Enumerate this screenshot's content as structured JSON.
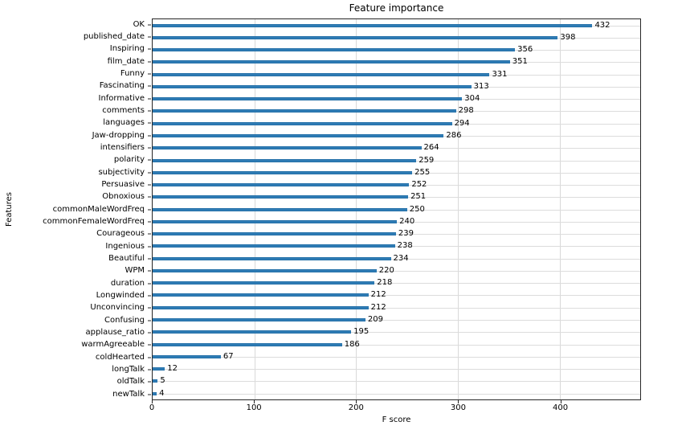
{
  "chart_data": {
    "type": "bar",
    "orientation": "horizontal",
    "title": "Feature importance",
    "xlabel": "F score",
    "ylabel": "Features",
    "xlim": [
      0,
      479
    ],
    "x_ticks": [
      0,
      100,
      200,
      300,
      400
    ],
    "grid": true,
    "legend": null,
    "bar_color": "#2f7cb5",
    "grid_color": "#dcdcdc",
    "axis_color": "#262626",
    "categories": [
      "OK",
      "published_date",
      "Inspiring",
      "film_date",
      "Funny",
      "Fascinating",
      "Informative",
      "comments",
      "languages",
      "Jaw-dropping",
      "intensifiers",
      "polarity",
      "subjectivity",
      "Persuasive",
      "Obnoxious",
      "commonMaleWordFreq",
      "commonFemaleWordFreq",
      "Courageous",
      "Ingenious",
      "Beautiful",
      "WPM",
      "duration",
      "Longwinded",
      "Unconvincing",
      "Confusing",
      "applause_ratio",
      "warmAgreeable",
      "coldHearted",
      "longTalk",
      "oldTalk",
      "newTalk"
    ],
    "values": [
      432,
      398,
      356,
      351,
      331,
      313,
      304,
      298,
      294,
      286,
      264,
      259,
      255,
      252,
      251,
      250,
      240,
      239,
      238,
      234,
      220,
      218,
      212,
      212,
      209,
      195,
      186,
      67,
      12,
      5,
      4
    ]
  }
}
